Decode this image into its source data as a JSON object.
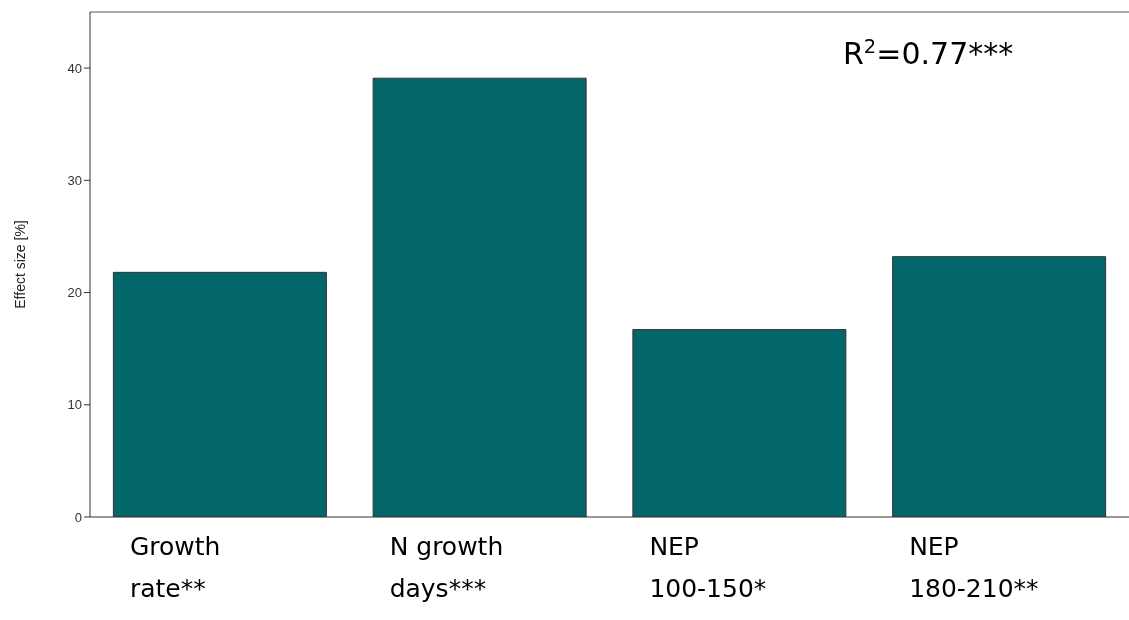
{
  "chart_data": {
    "type": "bar",
    "ylabel": "Effect size [%]",
    "categories": [
      "Growth rate**",
      "N growth days***",
      "NEP 100-150*",
      "NEP 180-210**"
    ],
    "values": [
      21.8,
      39.1,
      16.7,
      23.2
    ],
    "color": "#02666a",
    "ylim": [
      0,
      45
    ],
    "yticks": [
      0,
      10,
      20,
      30,
      40
    ],
    "annotations": [
      "R$^{2}$=0.77***"
    ]
  }
}
